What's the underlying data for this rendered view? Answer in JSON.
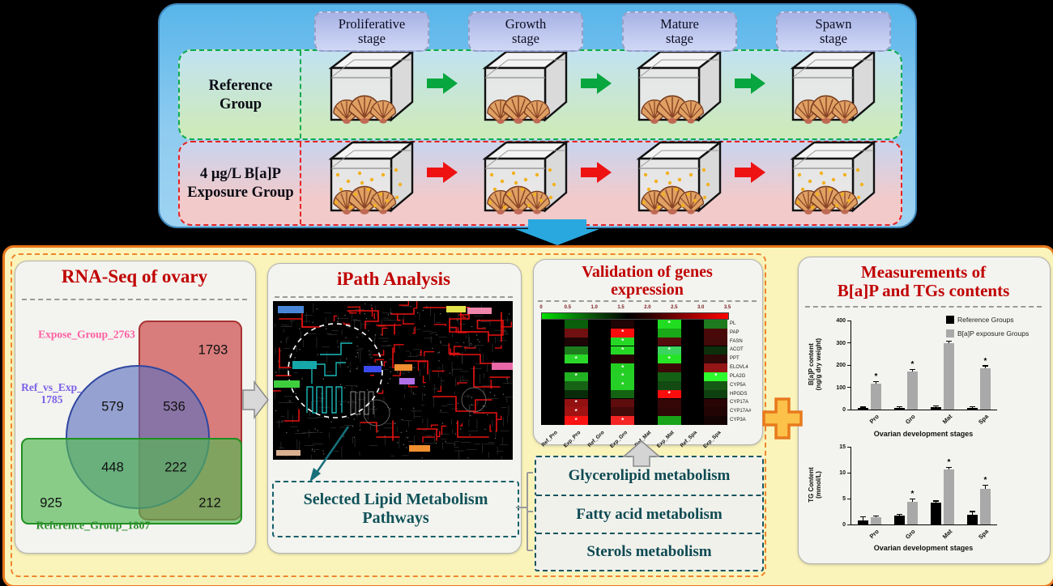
{
  "top": {
    "stages": [
      {
        "label": "Proliferative\nstage"
      },
      {
        "label": "Growth\nstage"
      },
      {
        "label": "Mature\nstage"
      },
      {
        "label": "Spawn\nstage"
      }
    ],
    "reference_group_label": "Reference\nGroup",
    "exposure_group_label": "4 μg/L B[a]P\nExposure Group"
  },
  "panels": {
    "rnaseq": {
      "title": "RNA-Seq of ovary",
      "venn": {
        "expose_label": "Expose_Group_2763",
        "comparison_label": "Ref_vs_Exp_\n1785",
        "reference_label": "Reference_Group_1807",
        "expose_only": "1793",
        "comparison_only": "579",
        "comparison_expose": "536",
        "comparison_reference": "448",
        "all_three": "222",
        "reference_only": "925",
        "expose_reference": "212"
      }
    },
    "ipath": {
      "title": "iPath Analysis",
      "selected_pathways": "Selected Lipid Metabolism\nPathways"
    },
    "validation": {
      "title": "Validation of  genes\nexpression"
    },
    "metabolism_boxes": [
      "Glycerolipid metabolism",
      "Fatty acid metabolism",
      "Sterols metabolism"
    ],
    "measurements": {
      "title": "Measurements of\nB[a]P and TGs contents",
      "legend": [
        "Reference Groups",
        "B[a]P exposure Groups"
      ],
      "legend_colors": [
        "#000000",
        "#a9a9a9"
      ]
    }
  },
  "chart_data": [
    {
      "type": "heatmap",
      "title": "Validation of genes expression",
      "colorbar_ticks": [
        "0",
        "0.5",
        "1.0",
        "1.5",
        "2.0",
        "2.5",
        "3.0",
        "3.5"
      ],
      "colorbar_colors": [
        "#00dd00",
        "#000000",
        "#ff0000"
      ],
      "columns": [
        "Ref_Pro",
        "Exp_Pro",
        "Ref_Gro",
        "Exp_Gro",
        "Ref_Mat",
        "Exp_Mat",
        "Ref_Spa",
        "Exp_Spa"
      ],
      "genes": [
        "PL",
        "PAP",
        "FASN",
        "ACOT",
        "PPT",
        "ELOVL4",
        "PLA2G",
        "CYP5A",
        "HPGDS",
        "CYP17A",
        "CYP17A#",
        "CYP3A"
      ],
      "cells": [
        [
          "#000000",
          "#0b5e0b",
          "#000000",
          "#1e0404",
          "#000000",
          "#21dd21",
          "#000000",
          "#1e7a1e"
        ],
        [
          "#000000",
          "#701010",
          "#000000",
          "#fb0d0d",
          "#000000",
          "#18a818",
          "#000000",
          "#4a0909"
        ],
        [
          "#000000",
          "#1e0505",
          "#000000",
          "#26d826",
          "#000000",
          "#550c0c",
          "#000000",
          "#440909"
        ],
        [
          "#000000",
          "#1e7c1e",
          "#000000",
          "#26d826",
          "#000000",
          "#3bd45e",
          "#000000",
          "#0b300b"
        ],
        [
          "#000000",
          "#2ad82a",
          "#000000",
          "#260505",
          "#000000",
          "#26e426",
          "#000000",
          "#300707"
        ],
        [
          "#000000",
          "#030303",
          "#000000",
          "#22cf22",
          "#000000",
          "#3b0707",
          "#000000",
          "#941616"
        ],
        [
          "#000000",
          "#22b322",
          "#000000",
          "#26cf26",
          "#000000",
          "#146014",
          "#000000",
          "#2efb2e"
        ],
        [
          "#000000",
          "#166316",
          "#000000",
          "#26cf26",
          "#000000",
          "#124a12",
          "#000000",
          "#145814"
        ],
        [
          "#000000",
          "#092b09",
          "#000000",
          "#136313",
          "#000000",
          "#fb0d0d",
          "#000000",
          "#0f400f"
        ],
        [
          "#000000",
          "#941111",
          "#000000",
          "#5e0c0c",
          "#000000",
          "#350707",
          "#000000",
          "#2a0505"
        ],
        [
          "#000000",
          "#a11313",
          "#000000",
          "#440909",
          "#000000",
          "#300707",
          "#000000",
          "#220404"
        ],
        [
          "#000000",
          "#fb1212",
          "#000000",
          "#f52525",
          "#000000",
          "#18a318",
          "#000000",
          "#130303"
        ]
      ],
      "stars": [
        [
          0,
          0,
          0,
          0,
          0,
          1,
          0,
          0
        ],
        [
          0,
          0,
          0,
          1,
          0,
          0,
          0,
          0
        ],
        [
          0,
          0,
          0,
          1,
          0,
          0,
          0,
          0
        ],
        [
          0,
          0,
          0,
          1,
          0,
          1,
          0,
          0
        ],
        [
          0,
          1,
          0,
          0,
          0,
          1,
          0,
          0
        ],
        [
          0,
          0,
          0,
          1,
          0,
          0,
          0,
          0
        ],
        [
          0,
          1,
          0,
          1,
          0,
          0,
          0,
          1
        ],
        [
          0,
          0,
          0,
          1,
          0,
          0,
          0,
          0
        ],
        [
          0,
          0,
          0,
          0,
          0,
          1,
          0,
          0
        ],
        [
          0,
          1,
          0,
          0,
          0,
          0,
          0,
          0
        ],
        [
          0,
          1,
          0,
          0,
          0,
          0,
          0,
          0
        ],
        [
          0,
          1,
          0,
          1,
          0,
          0,
          0,
          0
        ]
      ]
    },
    {
      "type": "bar",
      "title": "B[a]P content",
      "categories": [
        "Pro",
        "Gro",
        "Mat",
        "Spa"
      ],
      "ylabel": "B[a]P content\n(ng/g dry weight)",
      "xlabel": "Ovarian development stages",
      "ylim": [
        0,
        400
      ],
      "yticks": [
        0,
        100,
        200,
        300,
        400
      ],
      "series": [
        {
          "name": "Reference Groups",
          "color": "#000000",
          "values": [
            7,
            8,
            11,
            9
          ],
          "err": [
            2,
            2,
            3,
            2
          ],
          "sig": [
            false,
            false,
            false,
            false
          ]
        },
        {
          "name": "B[a]P exposure Groups",
          "color": "#a9a9a9",
          "values": [
            118,
            170,
            298,
            185
          ],
          "err": [
            6,
            8,
            7,
            9
          ],
          "sig": [
            true,
            true,
            true,
            true
          ]
        }
      ]
    },
    {
      "type": "bar",
      "title": "TG Content",
      "categories": [
        "Pro",
        "Gro",
        "Mat",
        "Spa"
      ],
      "ylabel": "TG Content\n(mmol/L)",
      "xlabel": "Ovarian development stages",
      "ylim": [
        0,
        15
      ],
      "yticks": [
        0,
        5,
        10,
        15
      ],
      "series": [
        {
          "name": "Reference Groups",
          "color": "#000000",
          "values": [
            0.8,
            1.7,
            4.2,
            1.9
          ],
          "err": [
            0.6,
            0.15,
            0.25,
            0.5
          ],
          "sig": [
            false,
            false,
            false,
            false
          ]
        },
        {
          "name": "B[a]P exposure Groups",
          "color": "#a9a9a9",
          "values": [
            1.4,
            4.3,
            10.6,
            6.8
          ],
          "err": [
            0.15,
            0.5,
            0.35,
            0.7
          ],
          "sig": [
            false,
            true,
            true,
            true
          ]
        }
      ]
    }
  ]
}
